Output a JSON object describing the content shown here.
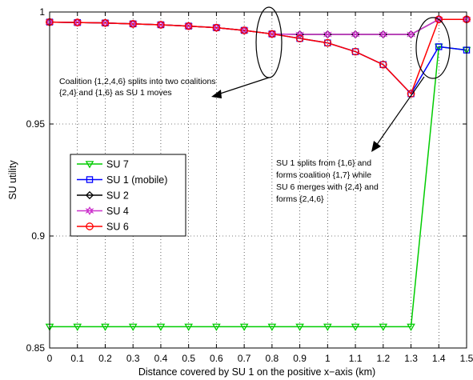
{
  "chart_data": {
    "type": "line",
    "xlabel": "Distance covered by SU 1 on the positive x−axis (km)",
    "ylabel": "SU utility",
    "xlim": [
      0,
      1.5
    ],
    "ylim": [
      0.85,
      1
    ],
    "x_ticks": [
      "0",
      "0.1",
      "0.2",
      "0.3",
      "0.4",
      "0.5",
      "0.6",
      "0.7",
      "0.8",
      "0.9",
      "1",
      "1.1",
      "1.2",
      "1.3",
      "1.4",
      "1.5"
    ],
    "y_ticks": [
      "0.85",
      "0.9",
      "0.95",
      "1"
    ],
    "grid": "dotted",
    "legend_position": "left-middle",
    "x": [
      0,
      0.1,
      0.2,
      0.3,
      0.4,
      0.5,
      0.6,
      0.7,
      0.8,
      0.9,
      1.0,
      1.1,
      1.2,
      1.3,
      1.4,
      1.5
    ],
    "series": [
      {
        "name": "SU 7",
        "color": "#00cc00",
        "marker": "triangle-down",
        "values": [
          0.8595,
          0.8595,
          0.8595,
          0.8595,
          0.8595,
          0.8595,
          0.8595,
          0.8595,
          0.8595,
          0.8595,
          0.8595,
          0.8595,
          0.8595,
          0.8595,
          0.9845,
          0.983
        ]
      },
      {
        "name": "SU 1 (mobile)",
        "color": "#0000ff",
        "marker": "square",
        "values": [
          0.9955,
          0.9953,
          0.9951,
          0.9947,
          0.9943,
          0.9937,
          0.993,
          0.9918,
          0.9902,
          0.9882,
          0.9862,
          0.9823,
          0.9765,
          0.9635,
          0.9845,
          0.983
        ]
      },
      {
        "name": "SU 2",
        "color": "#000000",
        "marker": "diamond",
        "values": [
          0.9955,
          0.9953,
          0.9951,
          0.9947,
          0.9943,
          0.9937,
          0.993,
          0.9918,
          0.9902,
          0.99,
          0.99,
          0.99,
          0.99,
          0.99,
          0.9967,
          0.9967
        ]
      },
      {
        "name": "SU 4",
        "color": "#cc33cc",
        "marker": "hexagram",
        "values": [
          0.9955,
          0.9953,
          0.9951,
          0.9947,
          0.9943,
          0.9937,
          0.993,
          0.9918,
          0.9902,
          0.99,
          0.99,
          0.99,
          0.99,
          0.99,
          0.9967,
          0.9967
        ]
      },
      {
        "name": "SU 6",
        "color": "#ff0000",
        "marker": "circle",
        "values": [
          0.9955,
          0.9953,
          0.9951,
          0.9947,
          0.9943,
          0.9937,
          0.993,
          0.9918,
          0.9902,
          0.9882,
          0.9862,
          0.9823,
          0.9765,
          0.9635,
          0.9967,
          0.9967
        ]
      }
    ],
    "annotations": [
      {
        "lines": [
          "Coalition {1,2,4,6} splits into two coalitions",
          "{2,4} and {1,6} as SU 1 moves"
        ]
      },
      {
        "lines": [
          "SU 1 splits from {1,6} and",
          "forms coalition {1,7} while",
          "SU 6 merges with {2,4} and",
          "forms {2,4,6}"
        ]
      }
    ]
  }
}
